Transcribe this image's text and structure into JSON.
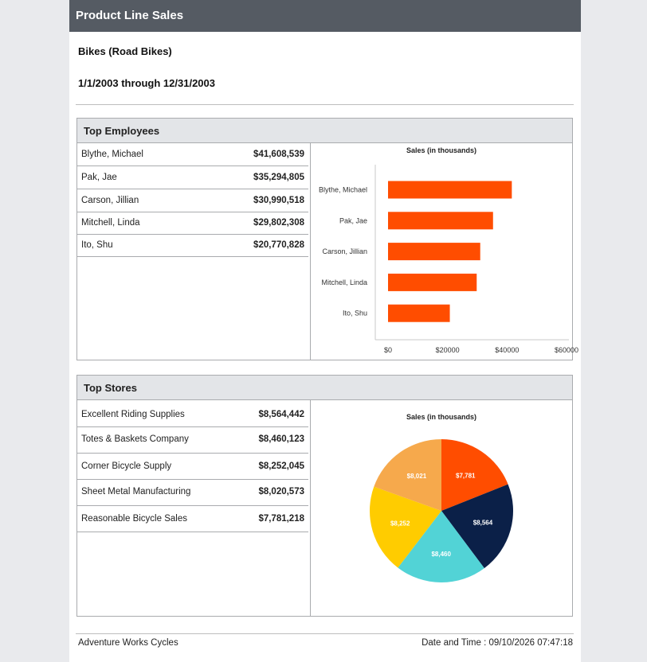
{
  "report": {
    "title": "Product Line Sales",
    "product": "Bikes (Road Bikes)",
    "date_range": "1/1/2003 through 12/31/2003"
  },
  "employees": {
    "heading": "Top Employees",
    "rows": [
      {
        "name": "Blythe, Michael",
        "value": "$41,608,539"
      },
      {
        "name": "Pak, Jae",
        "value": "$35,294,805"
      },
      {
        "name": "Carson, Jillian",
        "value": "$30,990,518"
      },
      {
        "name": "Mitchell, Linda",
        "value": "$29,802,308"
      },
      {
        "name": "Ito, Shu",
        "value": "$20,770,828"
      }
    ]
  },
  "stores": {
    "heading": "Top Stores",
    "rows": [
      {
        "name": "Excellent Riding Supplies",
        "value": "$8,564,442"
      },
      {
        "name": "Totes & Baskets Company",
        "value": "$8,460,123"
      },
      {
        "name": "Corner Bicycle Supply",
        "value": "$8,252,045"
      },
      {
        "name": "Sheet Metal Manufacturing",
        "value": "$8,020,573"
      },
      {
        "name": "Reasonable Bicycle Sales",
        "value": "$7,781,218"
      }
    ]
  },
  "footer": {
    "company": "Adventure Works Cycles",
    "datetime": "Date and Time : 09/10/2026 07:47:18"
  },
  "chart_data": [
    {
      "type": "bar",
      "orientation": "horizontal",
      "title": "Sales (in thousands)",
      "categories": [
        "Blythe, Michael",
        "Pak, Jae",
        "Carson, Jillian",
        "Mitchell, Linda",
        "Ito, Shu"
      ],
      "values": [
        41609,
        35295,
        30991,
        29802,
        20771
      ],
      "xlim": [
        0,
        60000
      ],
      "ticks": [
        "$0",
        "$20000",
        "$40000",
        "$60000"
      ],
      "tick_values": [
        0,
        20000,
        40000,
        60000
      ],
      "color": "#ff4d00",
      "grid": false
    },
    {
      "type": "pie",
      "title": "Sales (in thousands)",
      "slices": [
        {
          "label": "$7,781",
          "value": 7781,
          "color": "#ff4d00"
        },
        {
          "label": "$8,564",
          "value": 8564,
          "color": "#0b2048"
        },
        {
          "label": "$8,460",
          "value": 8460,
          "color": "#52d3d6"
        },
        {
          "label": "$8,252",
          "value": 8252,
          "color": "#ffcc00"
        },
        {
          "label": "$8,021",
          "value": 8021,
          "color": "#f6a94c"
        }
      ]
    }
  ]
}
